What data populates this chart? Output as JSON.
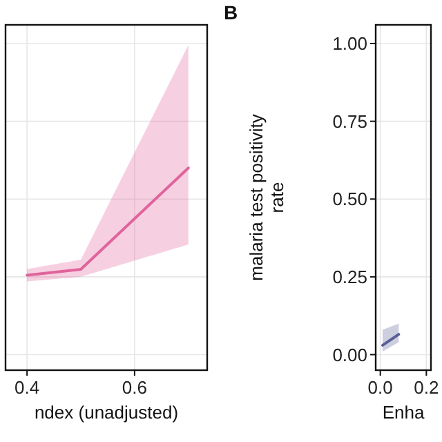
{
  "chart_data": [
    {
      "type": "line",
      "xlabel": "ndex (unadjusted)",
      "x": [
        0.4,
        0.5,
        0.7
      ],
      "xlim": [
        0.36,
        0.735
      ],
      "xticks": [
        0.4,
        0.6
      ],
      "ylim": [
        -0.05,
        1.06
      ],
      "yticks": [
        0,
        0.25,
        0.5,
        0.75,
        1
      ],
      "tick_labels": "x",
      "grid": true,
      "series": [
        {
          "color": "#e0649c",
          "values": [
            0.255,
            0.274,
            0.6
          ],
          "lower": [
            0.235,
            0.25,
            0.354
          ],
          "upper": [
            0.275,
            0.305,
            0.995
          ]
        }
      ]
    },
    {
      "type": "line",
      "title": "B",
      "xlabel": "Enha",
      "ylabel": "malaria test positivity\nrate",
      "x": [
        0.01,
        0.08
      ],
      "xlim": [
        -0.02,
        0.22
      ],
      "xticks": [
        {
          "value": 0,
          "label": "0.0"
        },
        {
          "value": 0.2,
          "label": "0.2"
        }
      ],
      "ylim": [
        -0.05,
        1.06
      ],
      "yticks": [
        {
          "value": 0,
          "label": "0.00"
        },
        {
          "value": 0.25,
          "label": "0.25"
        },
        {
          "value": 0.5,
          "label": "0.50"
        },
        {
          "value": 0.75,
          "label": "0.75"
        },
        {
          "value": 1,
          "label": "1.00"
        }
      ],
      "grid": true,
      "series": [
        {
          "color": "#5a5f96",
          "values": [
            0.03,
            0.065
          ],
          "lower": [
            0.01,
            0.04
          ],
          "upper": [
            0.08,
            0.1
          ]
        }
      ]
    }
  ]
}
